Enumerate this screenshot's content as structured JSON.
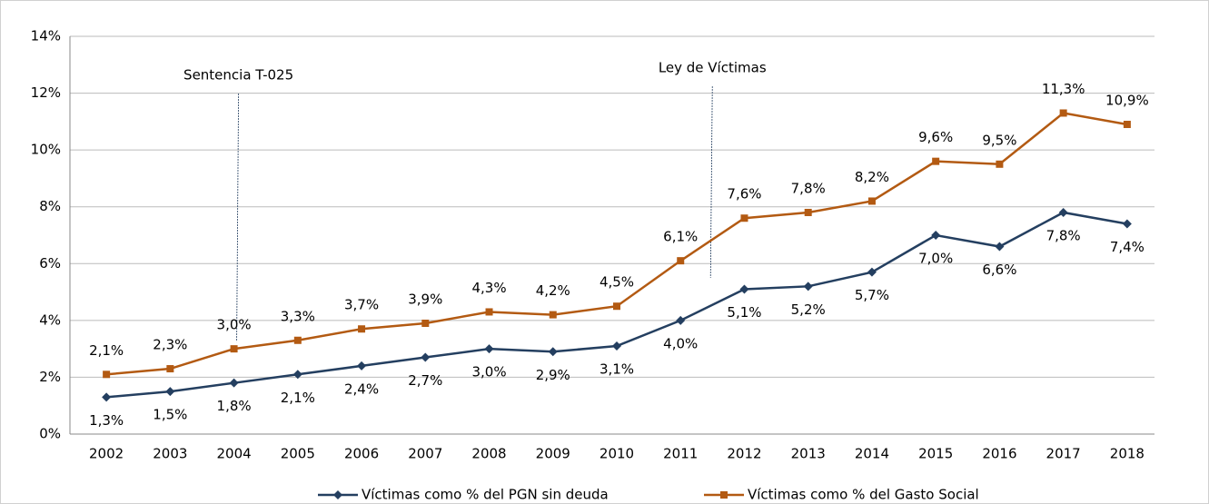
{
  "chart_data": {
    "type": "line",
    "categories": [
      "2002",
      "2003",
      "2004",
      "2005",
      "2006",
      "2007",
      "2008",
      "2009",
      "2010",
      "2011",
      "2012",
      "2013",
      "2014",
      "2015",
      "2016",
      "2017",
      "2018"
    ],
    "series": [
      {
        "name": "Víctimas como % del PGN sin deuda",
        "color": "#243f60",
        "marker": "diamond",
        "values": [
          1.3,
          1.5,
          1.8,
          2.1,
          2.4,
          2.7,
          3.0,
          2.9,
          3.1,
          4.0,
          5.1,
          5.2,
          5.7,
          7.0,
          6.6,
          7.8,
          7.4
        ],
        "value_labels": [
          "1,3%",
          "1,5%",
          "1,8%",
          "2,1%",
          "2,4%",
          "2,7%",
          "3,0%",
          "2,9%",
          "3,1%",
          "4,0%",
          "5,1%",
          "5,2%",
          "5,7%",
          "7,0%",
          "6,6%",
          "7,8%",
          "7,4%"
        ]
      },
      {
        "name": "Víctimas como % del Gasto Social",
        "color": "#b35a12",
        "marker": "square",
        "values": [
          2.1,
          2.3,
          3.0,
          3.3,
          3.7,
          3.9,
          4.3,
          4.2,
          4.5,
          6.1,
          7.6,
          7.8,
          8.2,
          9.6,
          9.5,
          11.3,
          10.9
        ],
        "value_labels": [
          "2,1%",
          "2,3%",
          "3,0%",
          "3,3%",
          "3,7%",
          "3,9%",
          "4,3%",
          "4,2%",
          "4,5%",
          "6,1%",
          "7,6%",
          "7,8%",
          "8,2%",
          "9,6%",
          "9,5%",
          "11,3%",
          "10,9%"
        ]
      }
    ],
    "ylim": [
      0,
      14
    ],
    "yticks": [
      {
        "value": 0,
        "label": "0%"
      },
      {
        "value": 2,
        "label": "2%"
      },
      {
        "value": 4,
        "label": "4%"
      },
      {
        "value": 6,
        "label": "6%"
      },
      {
        "value": 8,
        "label": "8%"
      },
      {
        "value": 10,
        "label": "10%"
      },
      {
        "value": 12,
        "label": "12%"
      },
      {
        "value": 14,
        "label": "14%"
      }
    ],
    "grid": true,
    "legend": "bottom",
    "annotations": [
      {
        "text": "Sentencia T-025"
      },
      {
        "text": "Ley de Víctimas"
      }
    ]
  }
}
